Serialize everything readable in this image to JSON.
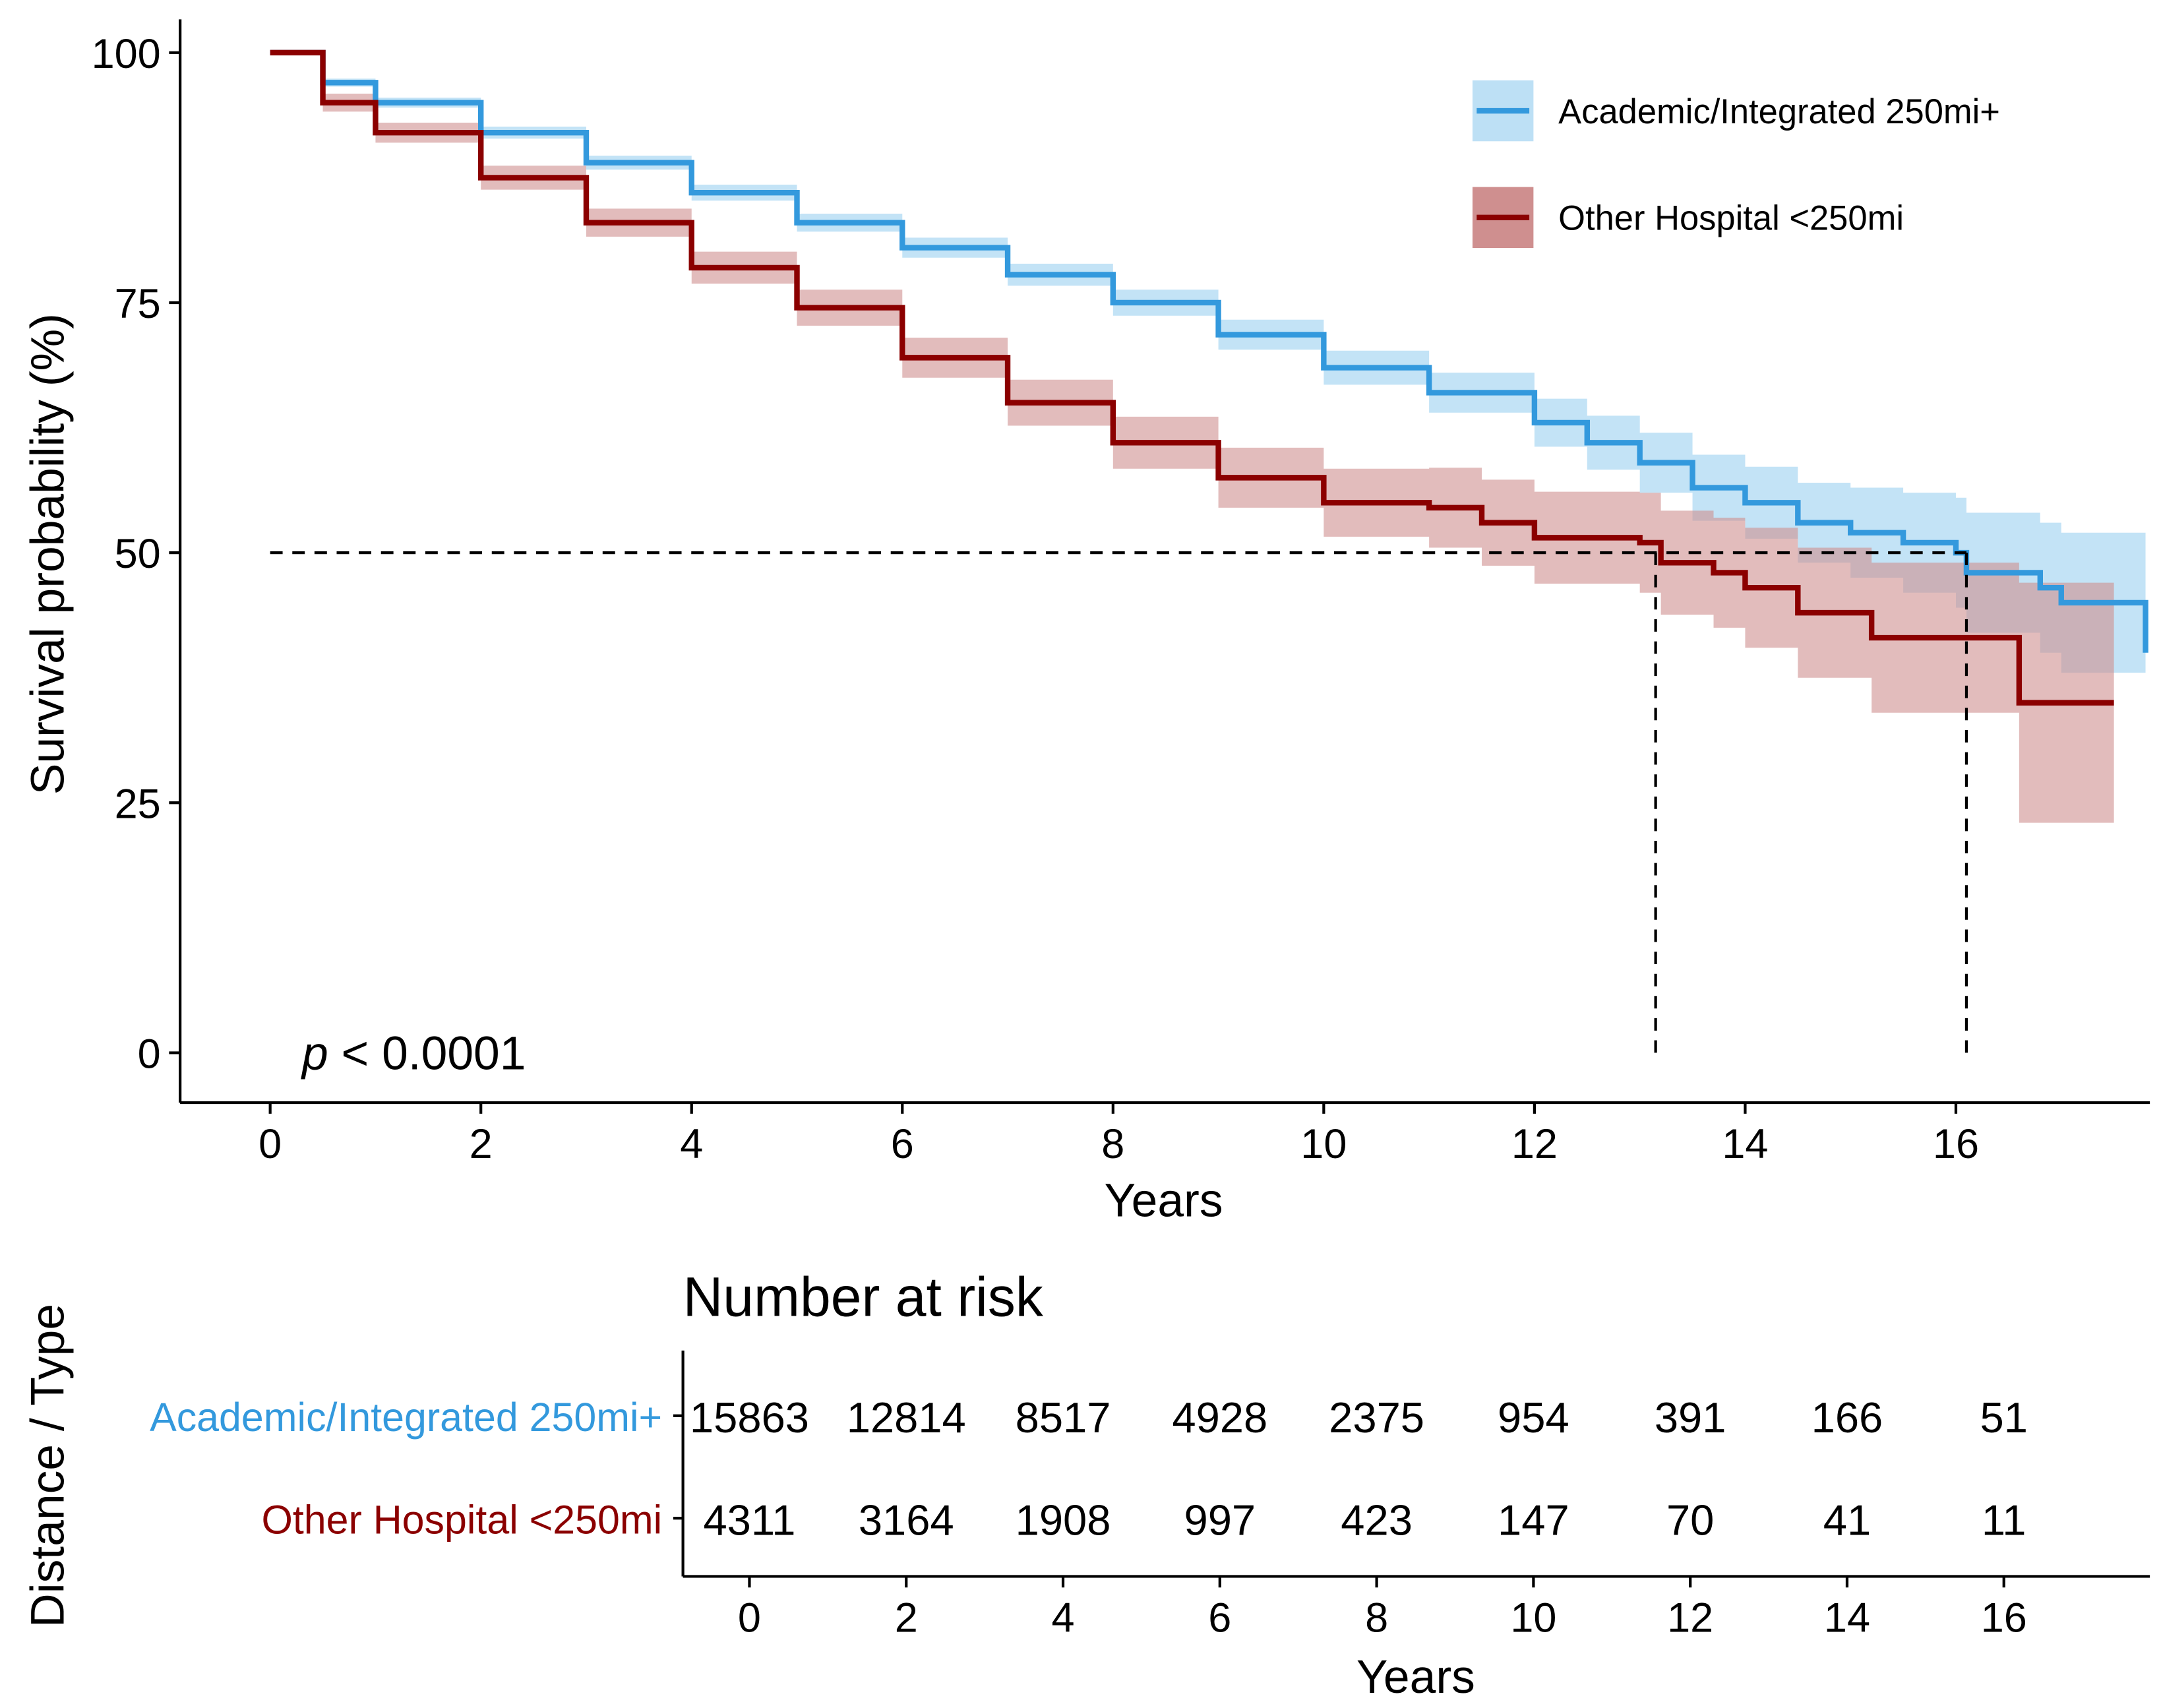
{
  "chart_data": {
    "type": "line",
    "subtype": "kaplan-meier",
    "xlabel": "Years",
    "ylabel": "Survival probability (%)",
    "xlim": [
      0,
      17.8
    ],
    "ylim": [
      0,
      100
    ],
    "x_ticks": [
      "0",
      "2",
      "4",
      "6",
      "8",
      "10",
      "12",
      "14",
      "16"
    ],
    "y_ticks": [
      "0",
      "25",
      "50",
      "75",
      "100"
    ],
    "pvalue": {
      "p": "p",
      "rest": " < 0.0001"
    },
    "median_line": 50,
    "medians": [
      13.15,
      16.1
    ],
    "legend_position": "top-right",
    "series": [
      {
        "name": "Academic/Integrated 250mi+",
        "color": "#3399dd",
        "band_color": "#bde0f5",
        "x": [
          0,
          0.5,
          1,
          2,
          3,
          4,
          5,
          6,
          7,
          8,
          9,
          10,
          11,
          12,
          12.5,
          13,
          13.5,
          14,
          14.5,
          15,
          15.5,
          16,
          16.1,
          16.8,
          17,
          17.8
        ],
        "y": [
          100,
          97,
          95,
          92,
          89,
          86,
          83,
          80.5,
          77.8,
          75,
          71.8,
          68.5,
          66,
          63,
          61,
          59,
          56.5,
          55,
          53,
          52,
          51,
          50,
          48,
          46.5,
          45,
          40
        ],
        "ci_halfwidth": [
          0,
          0.4,
          0.5,
          0.6,
          0.7,
          0.8,
          0.9,
          1,
          1.1,
          1.3,
          1.5,
          1.7,
          2,
          2.4,
          2.7,
          3,
          3.3,
          3.6,
          4,
          4.5,
          5,
          5.5,
          6,
          6.5,
          7,
          8.5
        ]
      },
      {
        "name": "Other Hospital <250mi",
        "color": "#8b0000",
        "band_color": "#cf8f8f",
        "x": [
          0,
          0.5,
          1,
          2,
          3,
          4,
          5,
          6,
          7,
          8,
          9,
          10,
          11,
          11.5,
          12,
          13,
          13.2,
          13.7,
          14,
          14.5,
          15.2,
          16,
          16.6,
          17.5
        ],
        "y": [
          100,
          95,
          92,
          87.5,
          83,
          78.5,
          74.5,
          69.5,
          65,
          61,
          57.5,
          55,
          54.5,
          53,
          51.5,
          51,
          49,
          48,
          46.5,
          44,
          41.5,
          41.5,
          35,
          35
        ],
        "ci_halfwidth": [
          0,
          0.9,
          1,
          1.2,
          1.4,
          1.6,
          1.8,
          2,
          2.3,
          2.6,
          3,
          3.4,
          4,
          4.3,
          4.6,
          5,
          5.2,
          5.5,
          6,
          6.5,
          7.5,
          7.5,
          12,
          12
        ]
      }
    ]
  },
  "risk_table": {
    "title": "Number at risk",
    "ylabel": "Distance / Type",
    "xlabel": "Years",
    "times": [
      "0",
      "2",
      "4",
      "6",
      "8",
      "10",
      "12",
      "14",
      "16"
    ],
    "rows": [
      {
        "label": "Academic/Integrated 250mi+",
        "color": "#3399dd",
        "values": [
          "15863",
          "12814",
          "8517",
          "4928",
          "2375",
          "954",
          "391",
          "166",
          "51"
        ]
      },
      {
        "label": "Other Hospital <250mi",
        "color": "#8b0000",
        "values": [
          "4311",
          "3164",
          "1908",
          "997",
          "423",
          "147",
          "70",
          "41",
          "11"
        ]
      }
    ]
  }
}
